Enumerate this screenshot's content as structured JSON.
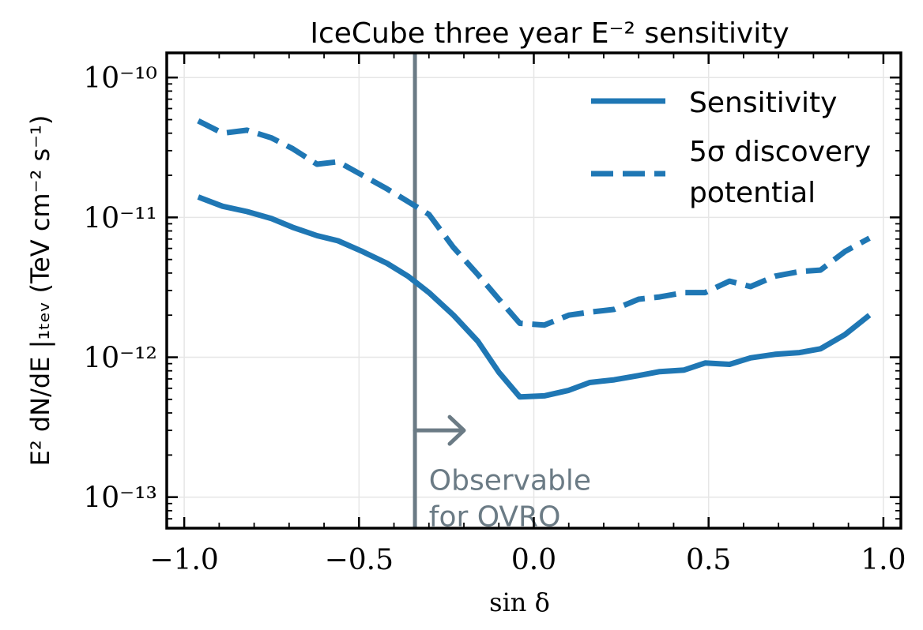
{
  "chart_data": {
    "type": "line",
    "title": "IceCube three year E⁻² sensitivity",
    "xlabel": "sin δ",
    "ylabel": "E² dN/dE |₁ₜₑᵥ (TeV cm⁻² s⁻¹)",
    "xlim": [
      -1.05,
      1.05
    ],
    "ylim": [
      6e-14,
      1.5e-10
    ],
    "yscale": "log",
    "grid": true,
    "legend_position": "top-right",
    "x_ticks": [
      -1.0,
      -0.5,
      0.0,
      0.5,
      1.0
    ],
    "x_tick_labels": [
      "−1.0",
      "−0.5",
      "0.0",
      "0.5",
      "1.0"
    ],
    "y_ticks": [
      1e-13,
      1e-12,
      1e-11,
      1e-10
    ],
    "y_tick_labels": [
      "10⁻¹³",
      "10⁻¹²",
      "10⁻¹¹",
      "10⁻¹⁰"
    ],
    "series": [
      {
        "name": "Sensitivity",
        "style": "solid",
        "color": "#1f77b4",
        "x": [
          -0.96,
          -0.89,
          -0.82,
          -0.75,
          -0.69,
          -0.62,
          -0.56,
          -0.49,
          -0.42,
          -0.36,
          -0.3,
          -0.23,
          -0.16,
          -0.1,
          -0.04,
          0.03,
          0.1,
          0.16,
          0.23,
          0.3,
          0.36,
          0.43,
          0.49,
          0.56,
          0.62,
          0.69,
          0.76,
          0.82,
          0.89,
          0.96
        ],
        "values": [
          1.4e-11,
          1.2e-11,
          1.1e-11,
          9.8e-12,
          8.5e-12,
          7.4e-12,
          6.8e-12,
          5.7e-12,
          4.7e-12,
          3.8e-12,
          2.9e-12,
          2e-12,
          1.3e-12,
          7.8e-13,
          5.2e-13,
          5.3e-13,
          5.8e-13,
          6.6e-13,
          6.9e-13,
          7.4e-13,
          7.9e-13,
          8.1e-13,
          9.1e-13,
          8.9e-13,
          9.9e-13,
          1.05e-12,
          1.08e-12,
          1.15e-12,
          1.45e-12,
          2e-12
        ]
      },
      {
        "name": "5σ discovery potential",
        "style": "dashed",
        "color": "#1f77b4",
        "x": [
          -0.96,
          -0.89,
          -0.82,
          -0.75,
          -0.69,
          -0.62,
          -0.56,
          -0.49,
          -0.42,
          -0.36,
          -0.3,
          -0.23,
          -0.16,
          -0.1,
          -0.04,
          0.03,
          0.1,
          0.16,
          0.23,
          0.3,
          0.36,
          0.43,
          0.49,
          0.56,
          0.62,
          0.69,
          0.76,
          0.82,
          0.89,
          0.96
        ],
        "values": [
          4.9e-11,
          4e-11,
          4.2e-11,
          3.7e-11,
          3.1e-11,
          2.4e-11,
          2.5e-11,
          2e-11,
          1.6e-11,
          1.3e-11,
          1.05e-11,
          6.1e-12,
          3.9e-12,
          2.6e-12,
          1.75e-12,
          1.7e-12,
          2e-12,
          2.1e-12,
          2.2e-12,
          2.6e-12,
          2.7e-12,
          2.9e-12,
          2.9e-12,
          3.5e-12,
          3.2e-12,
          3.8e-12,
          4.1e-12,
          4.2e-12,
          5.7e-12,
          7.1e-12
        ]
      }
    ],
    "annotations": [
      {
        "type": "vertical-line",
        "x": -0.34,
        "color": "#6b7b85"
      },
      {
        "type": "arrow",
        "x_start": -0.34,
        "x_end": -0.2,
        "y": 3e-13,
        "color": "#6b7b85"
      },
      {
        "type": "text",
        "text_lines": [
          "Observable",
          "for OVRO"
        ],
        "x": -0.3,
        "y": 1.2e-13,
        "color": "#6b7b85"
      }
    ]
  }
}
